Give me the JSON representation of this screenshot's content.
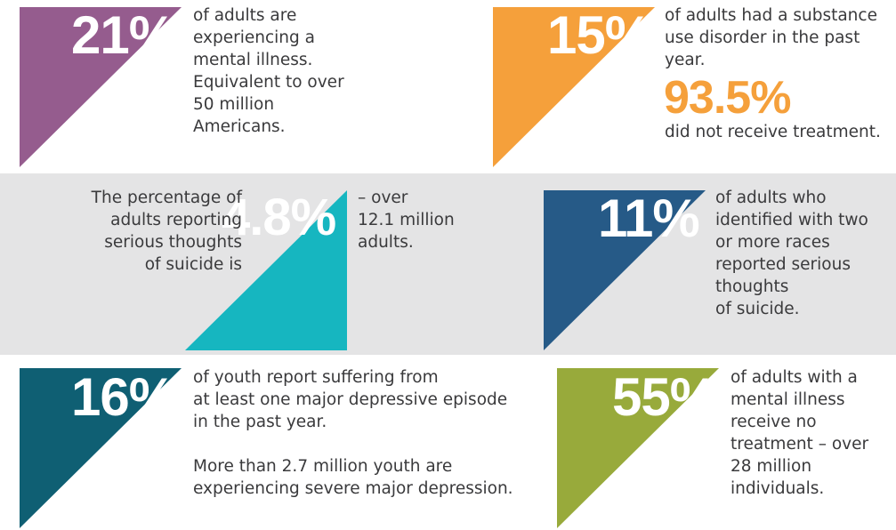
{
  "panels": {
    "p1": {
      "color": "#955c8e",
      "stat": "21%",
      "text": "of adults are\nexperiencing a\nmental illness.\nEquivalent to over\n50 million\nAmericans."
    },
    "p2": {
      "color": "#f5a03b",
      "stat": "15%",
      "text": "of adults had a substance\nuse disorder in the past\nyear.",
      "stat2": "93.5%",
      "text2": "did not receive treatment."
    },
    "p3": {
      "color": "#16b6c0",
      "stat": "4.8%",
      "text_before": "The percentage of\nadults reporting\nserious thoughts\nof suicide is",
      "text_after": "– over\n12.1 million\nadults."
    },
    "p4": {
      "color": "#265a87",
      "stat": "11%",
      "text": "of adults who\nidentified with two\nor more races\nreported serious\nthoughts\nof suicide."
    },
    "p5": {
      "color": "#0f5f73",
      "stat": "16%",
      "text": "of youth report suffering from\nat least one major depressive episode\nin the past year.",
      "text2": "More than 2.7 million youth are\nexperiencing severe major depression."
    },
    "p6": {
      "color": "#98aa3b",
      "stat": "55%",
      "text": "of adults with a\nmental illness\nreceive no\ntreatment – over\n28 million\nindividuals."
    }
  }
}
